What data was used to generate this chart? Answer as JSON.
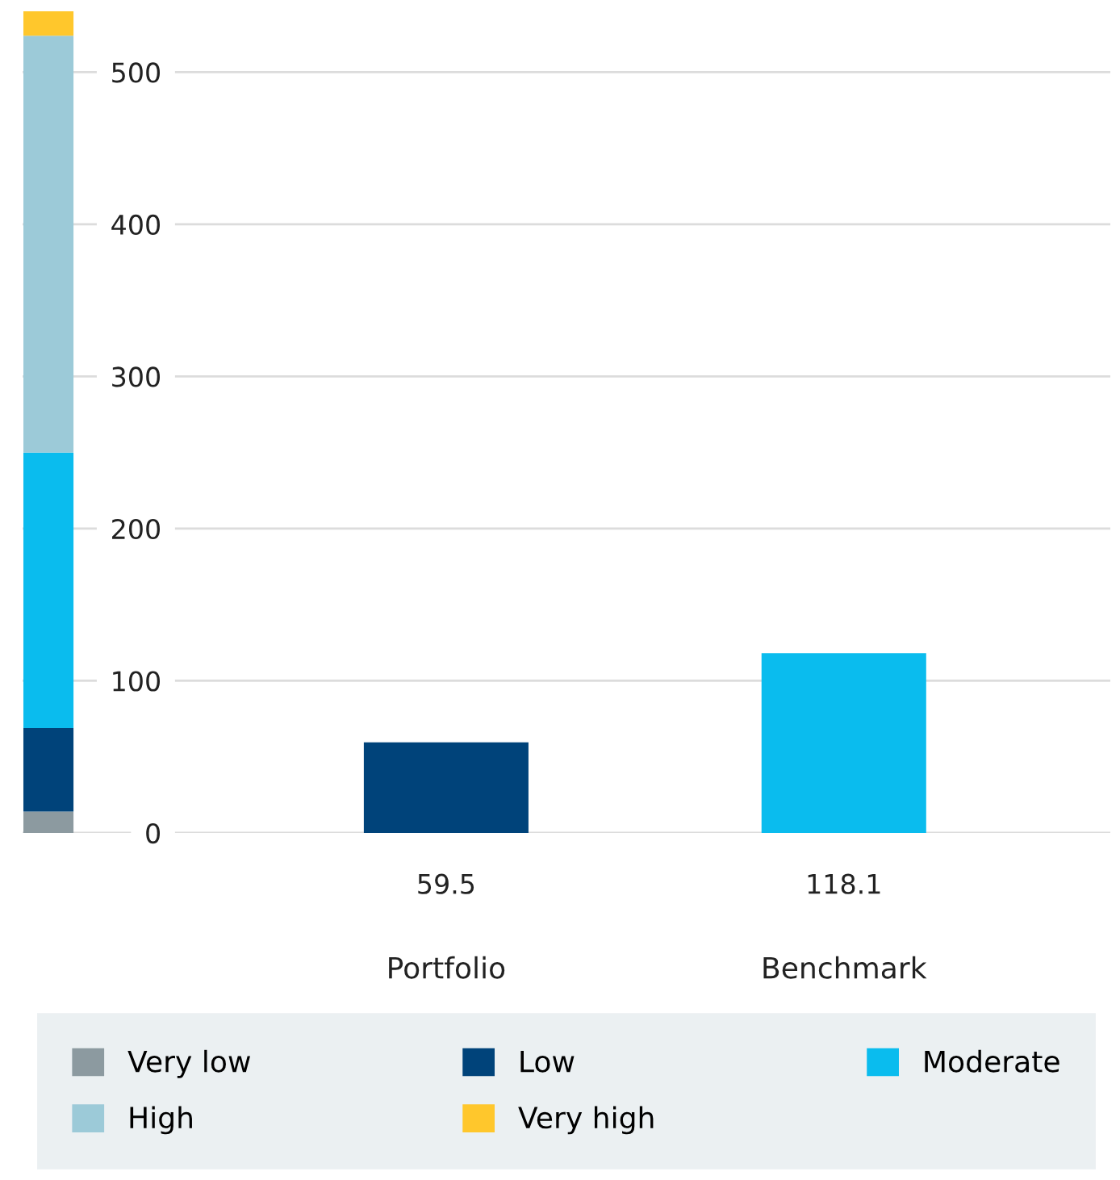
{
  "chart_data": {
    "type": "bar",
    "categories": [
      null,
      "Portfolio",
      "Benchmark"
    ],
    "stacked": true,
    "series": [
      {
        "name": "Very low",
        "color": "#8c9aa0",
        "values": [
          14,
          null,
          null
        ]
      },
      {
        "name": "Low",
        "color": "#00437a",
        "values": [
          55,
          59.5,
          null
        ],
        "value_labels": [
          null,
          "59.5",
          null
        ]
      },
      {
        "name": "Moderate",
        "color": "#0abcee",
        "values": [
          181,
          null,
          118.1
        ],
        "value_labels": [
          null,
          null,
          "118.1"
        ]
      },
      {
        "name": "High",
        "color": "#9ccad8",
        "values": [
          274,
          null,
          null
        ]
      },
      {
        "name": "Very high",
        "color": "#ffc72c",
        "values": [
          16,
          null,
          null
        ]
      }
    ],
    "ylim": [
      0,
      540
    ],
    "yticks": [
      0,
      100,
      200,
      300,
      400,
      500
    ],
    "grid": "y",
    "legend": "bottom"
  }
}
